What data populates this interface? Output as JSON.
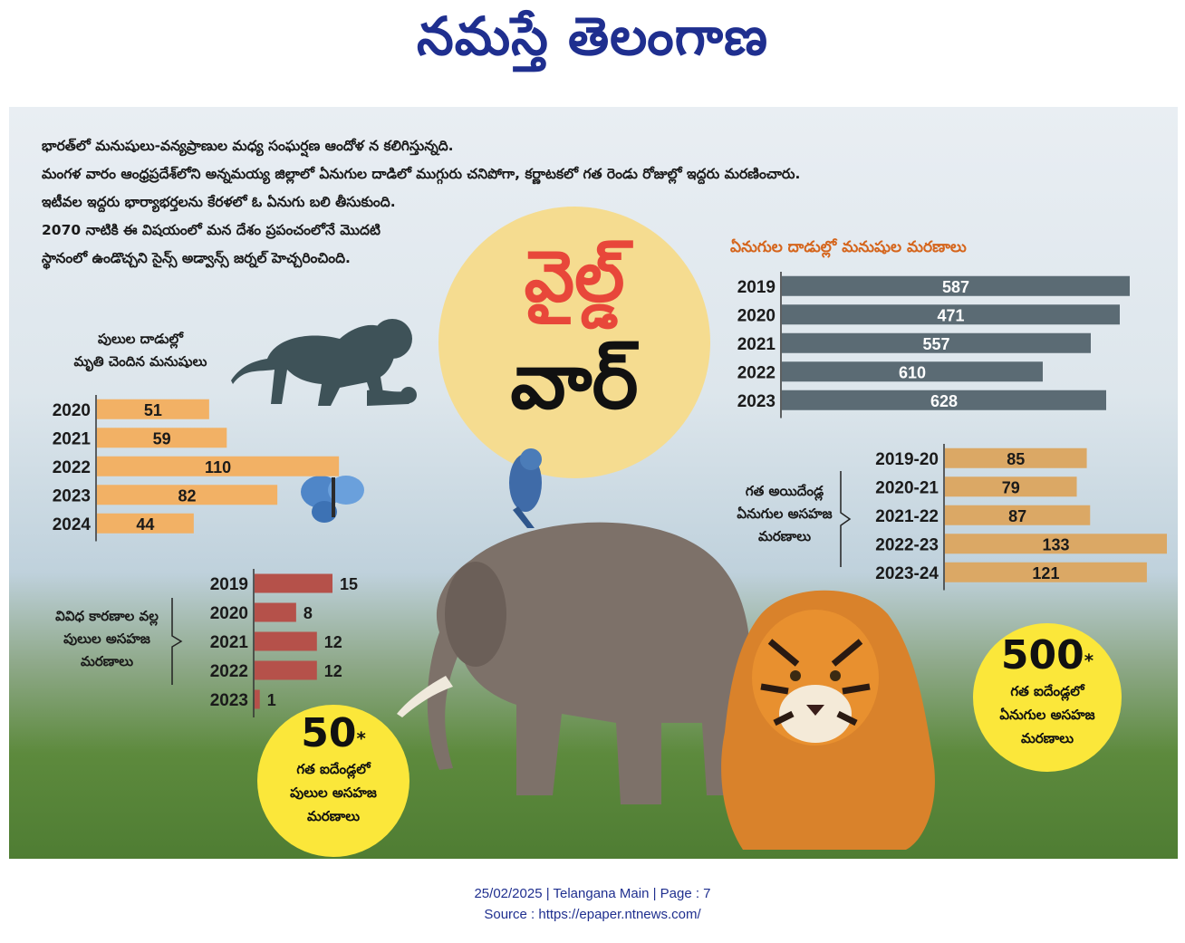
{
  "masthead": "నమస్తే తెలంగాణ",
  "intro_lines": [
    "భారత్‌లో మనుషులు-వన్యప్రాణుల మధ్య సంఘర్షణ ఆందోళ న కలిగిస్తున్నది.",
    "మంగళ వారం ఆంధ్రప్రదేశ్‌లోని అన్నమయ్య జిల్లాలో ఏనుగుల దాడిలో ముగ్గురు చనిపోగా, కర్ణాటకలో గత రెండు రోజుల్లో ఇద్దరు మరణించారు.",
    "ఇటీవల ఇద్దరు భార్యాభర్తలను కేరళలో ఓ ఏనుగు బలి తీసుకుంది.",
    "2070 నాటికి ఈ విషయంలో మన దేశం ప్రపంచంలోనే మొదటి",
    "స్థానంలో ఉండొచ్చని సైన్స్ అడ్వాన్స్ జర్నల్ హెచ్చరించింది."
  ],
  "title": {
    "line1": "వైల్డ్",
    "line2": "వార్"
  },
  "colors": {
    "orange": "#f2b165",
    "slate": "#5b6b74",
    "red": "#b5514a",
    "tan": "#dba865",
    "yellow": "#fbe73a",
    "cream": "#f5dc90"
  },
  "chart_data": [
    {
      "id": "tiger-attacks",
      "type": "bar",
      "orientation": "horizontal",
      "label_lines": [
        "పులుల దాడుల్లో",
        "మృతి చెందిన మనుషులు"
      ],
      "categories": [
        "2020",
        "2021",
        "2022",
        "2023",
        "2024"
      ],
      "values": [
        51,
        59,
        110,
        82,
        44
      ],
      "bar_color": "#f2b165"
    },
    {
      "id": "elephant-attacks",
      "type": "bar",
      "orientation": "horizontal",
      "label_lines": [
        "ఏనుగుల దాడుల్లో మనుషుల మరణాలు"
      ],
      "categories": [
        "2019",
        "2020",
        "2021",
        "2022",
        "2023"
      ],
      "values": [
        587,
        471,
        557,
        610,
        628
      ],
      "bar_color": "#5b6b74"
    },
    {
      "id": "tiger-unnatural-deaths",
      "type": "bar",
      "orientation": "horizontal",
      "label_lines": [
        "వివిధ కారణాల వల్ల",
        "పులుల అసహజ",
        "మరణాలు"
      ],
      "categories": [
        "2019",
        "2020",
        "2021",
        "2022",
        "2023"
      ],
      "values": [
        15,
        8,
        12,
        12,
        1
      ],
      "bar_color": "#b5514a"
    },
    {
      "id": "elephant-unnatural-deaths",
      "type": "bar",
      "orientation": "horizontal",
      "label_lines": [
        "గత అయిదేండ్ల",
        "ఏనుగుల అసహజ",
        "మరణాలు"
      ],
      "categories": [
        "2019-20",
        "2020-21",
        "2021-22",
        "2022-23",
        "2023-24"
      ],
      "values": [
        85,
        79,
        87,
        133,
        121
      ],
      "bar_color": "#dba865"
    }
  ],
  "badges": {
    "tiger": {
      "number": "50",
      "star": "*",
      "lines": [
        "గత ఐదేండ్లలో",
        "పులుల అసహజ",
        "మరణాలు"
      ]
    },
    "elephant": {
      "number": "500",
      "star": "*",
      "lines": [
        "గత ఐదేండ్లలో",
        "ఏనుగుల అసహజ",
        "మరణాలు"
      ]
    }
  },
  "footer": {
    "line1": "25/02/2025 | Telangana Main | Page : 7",
    "line2": "Source : https://epaper.ntnews.com/"
  }
}
